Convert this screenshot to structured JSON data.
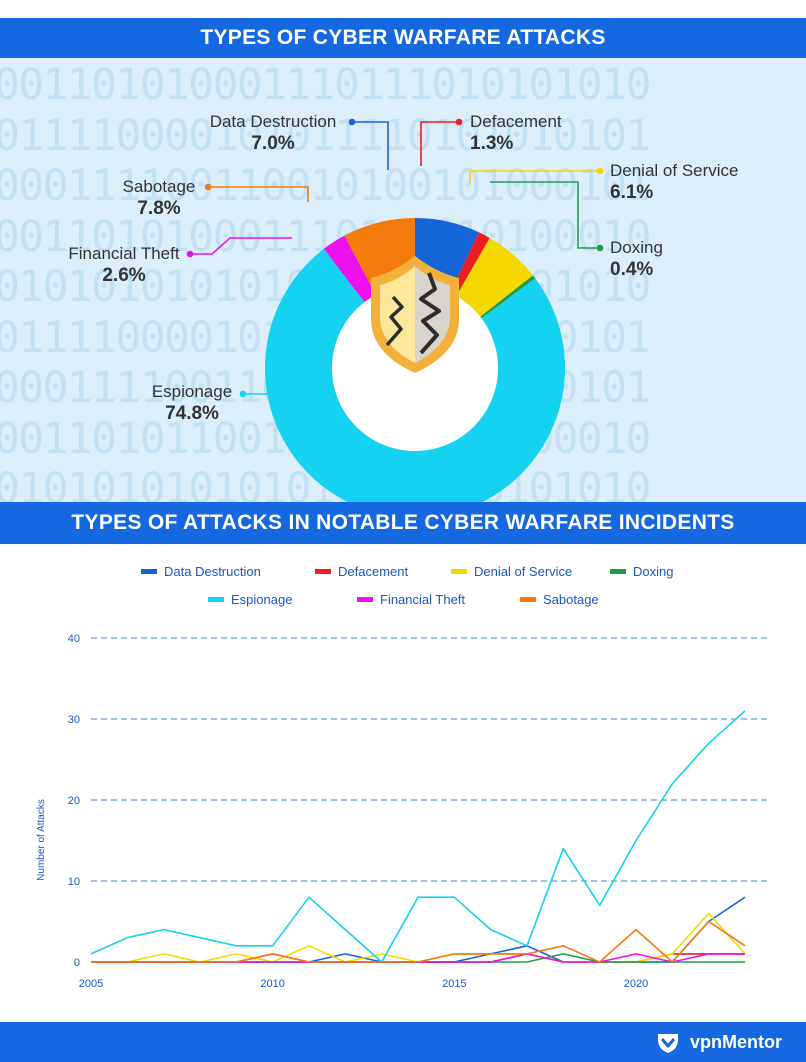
{
  "banner1": "TYPES OF CYBER WARFARE ATTACKS",
  "banner2": "TYPES OF ATTACKS IN NOTABLE CYBER WARFARE INCIDENTS",
  "background_binary": [
    "001101010001110111010101010",
    "011110000101011110101010101",
    "000111100110010100101000101",
    "001101010001110111010100010",
    "010101010101011100010101010",
    "011110000101011110101010101",
    "000111100110010100101000101",
    "001101011001110111010000010",
    "010101010101011100010101010",
    "011110000101011110101010101",
    "000111100110000100011100100"
  ],
  "brand": "vpnMentor",
  "colors": {
    "Data Destruction": "#1665d8",
    "Defacement": "#ee1c25",
    "Denial of Service": "#f5d800",
    "Doxing": "#1f9e48",
    "Espionage": "#14d2f0",
    "Financial Theft": "#ee11ee",
    "Sabotage": "#f57a0c"
  },
  "chart_data": [
    {
      "type": "pie",
      "title": "TYPES OF CYBER WARFARE ATTACKS",
      "hole": true,
      "center_icon": "cracked-shield-icon",
      "slices": [
        {
          "label": "Data Destruction",
          "value": 7.0,
          "text": "7.0%"
        },
        {
          "label": "Defacement",
          "value": 1.3,
          "text": "1.3%"
        },
        {
          "label": "Denial of Service",
          "value": 6.1,
          "text": "6.1%"
        },
        {
          "label": "Doxing",
          "value": 0.4,
          "text": "0.4%"
        },
        {
          "label": "Espionage",
          "value": 74.8,
          "text": "74.8%"
        },
        {
          "label": "Financial Theft",
          "value": 2.6,
          "text": "2.6%"
        },
        {
          "label": "Sabotage",
          "value": 7.8,
          "text": "7.8%"
        }
      ]
    },
    {
      "type": "line",
      "title": "TYPES OF ATTACKS IN NOTABLE CYBER WARFARE INCIDENTS",
      "ylabel": "Number of Attacks",
      "xlim": [
        2005,
        2023
      ],
      "ylim": [
        0,
        40
      ],
      "yticks": [
        0,
        10,
        20,
        30,
        40
      ],
      "xticks": [
        2005,
        2010,
        2015,
        2020
      ],
      "grid": "horizontal-dashed",
      "legend_position": "top",
      "x": [
        2005,
        2006,
        2007,
        2008,
        2009,
        2010,
        2011,
        2012,
        2013,
        2014,
        2015,
        2016,
        2017,
        2018,
        2019,
        2020,
        2021,
        2022,
        2023
      ],
      "series": [
        {
          "name": "Data Destruction",
          "values": [
            0,
            0,
            0,
            0,
            0,
            0,
            0,
            1,
            0,
            0,
            0,
            1,
            2,
            0,
            0,
            0,
            0,
            5,
            8
          ]
        },
        {
          "name": "Defacement",
          "values": [
            0,
            0,
            0,
            0,
            0,
            1,
            0,
            0,
            0,
            0,
            0,
            0,
            1,
            0,
            0,
            0,
            1,
            1,
            1
          ]
        },
        {
          "name": "Denial of Service",
          "values": [
            0,
            0,
            1,
            0,
            1,
            0,
            2,
            0,
            1,
            0,
            1,
            1,
            1,
            0,
            0,
            0,
            1,
            6,
            1
          ]
        },
        {
          "name": "Doxing",
          "values": [
            0,
            0,
            0,
            0,
            0,
            0,
            0,
            0,
            0,
            0,
            0,
            0,
            0,
            1,
            0,
            0,
            0,
            0,
            0
          ]
        },
        {
          "name": "Espionage",
          "values": [
            1,
            3,
            4,
            3,
            2,
            2,
            8,
            4,
            0,
            8,
            8,
            4,
            2,
            14,
            7,
            15,
            22,
            27,
            31
          ]
        },
        {
          "name": "Financial Theft",
          "values": [
            0,
            0,
            0,
            0,
            0,
            0,
            0,
            0,
            0,
            0,
            0,
            0,
            1,
            0,
            0,
            1,
            0,
            1,
            1
          ]
        },
        {
          "name": "Sabotage",
          "values": [
            0,
            0,
            0,
            0,
            0,
            1,
            0,
            0,
            0,
            0,
            1,
            1,
            1,
            2,
            0,
            4,
            0,
            5,
            2
          ]
        }
      ]
    }
  ]
}
